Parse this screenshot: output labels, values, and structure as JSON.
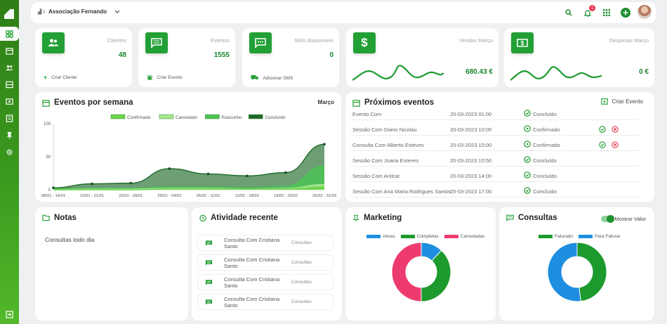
{
  "topbar": {
    "org_name": "Associação Fernando",
    "notification_count": "1"
  },
  "stats": [
    {
      "label": "Clientes",
      "value": "48",
      "action": "Criar Cliente",
      "icon": "users-icon"
    },
    {
      "label": "Eventos",
      "value": "1555",
      "action": "Criar Evento",
      "icon": "message-icon"
    },
    {
      "label": "SMS disponíveis",
      "value": "0",
      "action": "Adicionar SMS",
      "icon": "sms-icon"
    },
    {
      "label": "Vendas Março",
      "value": "680.43 €",
      "icon": "dollar-icon"
    },
    {
      "label": "Despesas Março",
      "value": "0 €",
      "icon": "cash-icon"
    }
  ],
  "weekly": {
    "title": "Eventos por semana",
    "month": "Março",
    "legend": [
      "Confirmado",
      "Cancelado",
      "Rascunho",
      "Concluído"
    ],
    "yticks": [
      "100",
      "50",
      "0"
    ],
    "xticks": [
      "08/01 - 14/01",
      "15/01 - 21/01",
      "22/01 - 28/01",
      "29/01 - 04/02",
      "05/02 - 11/02",
      "12/02 - 18/02",
      "19/02 - 25/02",
      "26/02 - 31/03"
    ]
  },
  "chart_data": {
    "type": "area",
    "categories": [
      "08/01 - 14/01",
      "15/01 - 21/01",
      "22/01 - 28/01",
      "29/01 - 04/02",
      "05/02 - 11/02",
      "12/02 - 18/02",
      "19/02 - 25/02",
      "26/02 - 31/03"
    ],
    "ylim": [
      0,
      100
    ],
    "series": [
      {
        "name": "Concluído",
        "values": [
          3,
          9,
          10,
          32,
          24,
          21,
          26,
          69
        ],
        "color": "#1f6a2a"
      },
      {
        "name": "Rascunho",
        "values": [
          1,
          2,
          2,
          4,
          4,
          3,
          5,
          36
        ],
        "color": "#4cc257"
      },
      {
        "name": "Cancelado",
        "values": [
          0,
          1,
          1,
          2,
          2,
          1,
          2,
          8
        ],
        "color": "#a5e68e"
      },
      {
        "name": "Confirmado",
        "values": [
          0,
          0,
          0,
          1,
          1,
          1,
          1,
          4
        ],
        "color": "#6bd44a"
      }
    ]
  },
  "upcoming": {
    "title": "Próximos eventos",
    "create_label": "Criar Evento",
    "rows": [
      {
        "name": "Evento Com",
        "date": "20-03-2023 01:00",
        "status": "Concluído",
        "actions": false
      },
      {
        "name": "Sessão Com Diano Nicolau",
        "date": "20-03-2023 10:00",
        "status": "Confirmado",
        "actions": true
      },
      {
        "name": "Consulta Com Alberto Esteves",
        "date": "20-03-2023 10:00",
        "status": "Confirmado",
        "actions": true
      },
      {
        "name": "Sessão Com Joana Esteves",
        "date": "20-03-2023 10:50",
        "status": "Concluído",
        "actions": false
      },
      {
        "name": "Sessão Com Anilcar",
        "date": "20-03-2023 14:00",
        "status": "Concluído",
        "actions": false
      },
      {
        "name": "Sessão Com Ana Maria Rodrigues Santos",
        "date": "20-03-2023 17:00",
        "status": "Concluído",
        "actions": false
      }
    ]
  },
  "notes": {
    "title": "Notas",
    "text": "Consultas todo dia"
  },
  "activity": {
    "title": "Atividade recente",
    "items": [
      {
        "text": "Consulta Com Cristiana Santo",
        "tag": "Consultas"
      },
      {
        "text": "Consulta Com Cristiana Santo",
        "tag": "Consultas"
      },
      {
        "text": "Consulta Com Cristiana Santo",
        "tag": "Consultas"
      },
      {
        "text": "Consulta Com Cristiana Santo",
        "tag": "Consultas"
      }
    ]
  },
  "marketing": {
    "title": "Marketing",
    "legend": [
      "Ativas",
      "Completas",
      "Canceladas"
    ],
    "chart": {
      "type": "pie",
      "labels": [
        "Ativas",
        "Completas",
        "Canceladas"
      ],
      "values": [
        12,
        38,
        50
      ],
      "colors": [
        "#1e8fe0",
        "#1d9a2e",
        "#ee3b6f"
      ]
    }
  },
  "consultas": {
    "title": "Consultas",
    "toggle_label": "Mostrar Valor",
    "legend": [
      "Faturado",
      "Para Faturar"
    ],
    "chart": {
      "type": "pie",
      "labels": [
        "Faturado",
        "Para Faturar"
      ],
      "values": [
        48,
        52
      ],
      "colors": [
        "#1d9a2e",
        "#1e8fe0"
      ]
    }
  }
}
